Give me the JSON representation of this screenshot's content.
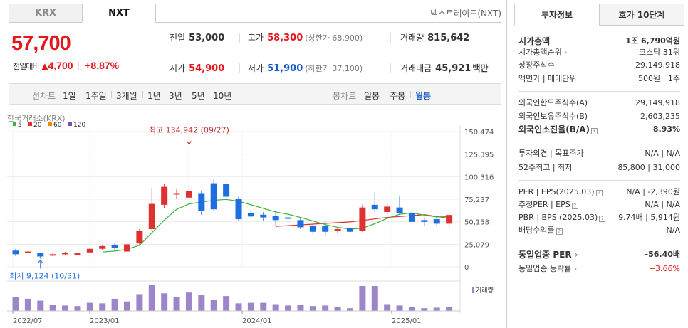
{
  "tabs": [
    "KRX",
    "NXT"
  ],
  "nxt_link": "넥스트레이드(NXT)",
  "price": "57,700",
  "change": {
    "label": "전일대비",
    "arrow": "▲",
    "amount": "4,700",
    "rate": "+8.87%"
  },
  "stats": {
    "prev_label": "전일",
    "prev": "53,000",
    "high_label": "고가",
    "high": "58,300",
    "upper": "(상한가 68,900)",
    "volume_label": "거래량",
    "volume": "815,642",
    "open_label": "시가",
    "open": "54,900",
    "low_label": "저가",
    "low": "51,900",
    "lower": "(하한가 37,100)",
    "amount_label": "거래대금",
    "amount": "45,921",
    "amount_unit": "백만"
  },
  "toolbar": {
    "line_label": "선차트",
    "line_items": [
      "1일",
      "1주일",
      "3개월",
      "1년",
      "3년",
      "5년",
      "10년"
    ],
    "candle_label": "봉차트",
    "candle_items": [
      "일봉",
      "주봉",
      "월봉"
    ]
  },
  "chart_data": {
    "type": "candlestick",
    "source": "한국거래소(KRX)",
    "legend": [
      {
        "name": "5",
        "color": "#3bb33b"
      },
      {
        "name": "20",
        "color": "#e03131"
      },
      {
        "name": "60",
        "color": "#f08c00"
      },
      {
        "name": "120",
        "color": "#7950b2"
      }
    ],
    "y_ticks": [
      "150,474",
      "125,395",
      "100,316",
      "75,237",
      "50,158",
      "25,079",
      "0"
    ],
    "x_ticks": [
      "2022/07",
      "2023/01",
      "2024/01",
      "2025/01"
    ],
    "high_label": "최고 134,942 (09/27)",
    "low_label": "최저 9,124 (10/31)",
    "volume_label": "거래량",
    "candles": [
      {
        "o": 18000,
        "c": 14000,
        "h": 20000,
        "l": 12000
      },
      {
        "o": 17000,
        "c": 17000,
        "h": 19000,
        "l": 15000
      },
      {
        "o": 15000,
        "c": 11500,
        "h": 16000,
        "l": 9124
      },
      {
        "o": 13000,
        "c": 14000,
        "h": 15000,
        "l": 12000
      },
      {
        "o": 14500,
        "c": 15500,
        "h": 16500,
        "l": 13500
      },
      {
        "o": 15000,
        "c": 15000,
        "h": 16000,
        "l": 14000
      },
      {
        "o": 16000,
        "c": 20000,
        "h": 21000,
        "l": 15000
      },
      {
        "o": 20000,
        "c": 23000,
        "h": 24000,
        "l": 19000
      },
      {
        "o": 24000,
        "c": 21000,
        "h": 26000,
        "l": 19000
      },
      {
        "o": 17000,
        "c": 25000,
        "h": 27000,
        "l": 15000
      },
      {
        "o": 26000,
        "c": 40000,
        "h": 42000,
        "l": 24000
      },
      {
        "o": 42000,
        "c": 70000,
        "h": 88000,
        "l": 40000
      },
      {
        "o": 69000,
        "c": 89000,
        "h": 92000,
        "l": 65000
      },
      {
        "o": 82000,
        "c": 82000,
        "h": 87000,
        "l": 76000
      },
      {
        "o": 77000,
        "c": 84000,
        "h": 134942,
        "l": 76000
      },
      {
        "o": 82000,
        "c": 62000,
        "h": 85000,
        "l": 58000
      },
      {
        "o": 93000,
        "c": 64000,
        "h": 98000,
        "l": 62000
      },
      {
        "o": 92000,
        "c": 78000,
        "h": 95000,
        "l": 74000
      },
      {
        "o": 76000,
        "c": 53000,
        "h": 78000,
        "l": 51000
      },
      {
        "o": 60000,
        "c": 56000,
        "h": 64000,
        "l": 54000
      },
      {
        "o": 58000,
        "c": 55000,
        "h": 61000,
        "l": 51000
      },
      {
        "o": 57000,
        "c": 52000,
        "h": 62000,
        "l": 45000
      },
      {
        "o": 55000,
        "c": 54000,
        "h": 58000,
        "l": 49000
      },
      {
        "o": 52000,
        "c": 44000,
        "h": 55000,
        "l": 42000
      },
      {
        "o": 46000,
        "c": 39000,
        "h": 48000,
        "l": 36000
      },
      {
        "o": 46000,
        "c": 39000,
        "h": 51000,
        "l": 34000
      },
      {
        "o": 40000,
        "c": 42000,
        "h": 44000,
        "l": 37000
      },
      {
        "o": 43000,
        "c": 39000,
        "h": 45000,
        "l": 36000
      },
      {
        "o": 40000,
        "c": 66000,
        "h": 69000,
        "l": 39000
      },
      {
        "o": 69000,
        "c": 64000,
        "h": 83000,
        "l": 61000
      },
      {
        "o": 61000,
        "c": 67000,
        "h": 70000,
        "l": 58000
      },
      {
        "o": 66000,
        "c": 60000,
        "h": 79000,
        "l": 58000
      },
      {
        "o": 60000,
        "c": 50000,
        "h": 62000,
        "l": 48000
      },
      {
        "o": 52000,
        "c": 50000,
        "h": 55000,
        "l": 45000
      },
      {
        "o": 53000,
        "c": 48000,
        "h": 56000,
        "l": 46000
      },
      {
        "o": 48000,
        "c": 57700,
        "h": 60000,
        "l": 42000
      }
    ],
    "ma5": [
      [
        7,
        16500
      ],
      [
        8,
        17500
      ],
      [
        9,
        19500
      ],
      [
        10,
        24000
      ],
      [
        11,
        38000
      ],
      [
        12,
        52000
      ],
      [
        13,
        64000
      ],
      [
        14,
        70000
      ],
      [
        15,
        72000
      ],
      [
        16,
        74000
      ],
      [
        17,
        75000
      ],
      [
        18,
        73000
      ],
      [
        19,
        69000
      ],
      [
        20,
        65000
      ],
      [
        21,
        61000
      ],
      [
        22,
        58500
      ],
      [
        23,
        55000
      ],
      [
        24,
        51000
      ],
      [
        25,
        47000
      ],
      [
        26,
        44000
      ],
      [
        27,
        42000
      ],
      [
        28,
        43000
      ],
      [
        29,
        48000
      ],
      [
        30,
        54000
      ],
      [
        31,
        58500
      ],
      [
        32,
        60000
      ],
      [
        33,
        57500
      ],
      [
        34,
        55500
      ],
      [
        35,
        56000
      ]
    ],
    "ma20": [
      [
        21,
        45000
      ],
      [
        24,
        47500
      ],
      [
        27,
        50000
      ],
      [
        30,
        55000
      ],
      [
        33,
        58000
      ],
      [
        35,
        54000
      ]
    ],
    "volumes": [
      0.52,
      0.45,
      0.38,
      0.22,
      0.2,
      0.18,
      0.3,
      0.28,
      0.45,
      0.35,
      0.62,
      0.95,
      0.65,
      0.5,
      0.68,
      0.58,
      0.42,
      0.55,
      0.28,
      0.3,
      0.3,
      0.25,
      0.2,
      0.22,
      0.18,
      0.2,
      0.15,
      0.1,
      0.92,
      0.92,
      0.25,
      0.2,
      0.15,
      0.1,
      0.12,
      0.15
    ]
  },
  "panel": {
    "tabs": [
      "투자정보",
      "호가 10단계"
    ],
    "rows": [
      {
        "k": "시가총액",
        "v": "1조 6,790억원",
        "bold": true
      },
      {
        "k": "시가총액순위",
        "v": "코스닥 31위",
        "arrow": true
      },
      {
        "k": "상장주식수",
        "v": "29,149,918"
      },
      {
        "k": "액면가 | 매매단위",
        "v": "500원 | 1주"
      },
      {
        "k": "외국인한도주식수(A)",
        "v": "29,149,918"
      },
      {
        "k": "외국인보유주식수(B)",
        "v": "2,603,235"
      },
      {
        "k": "외국인소진율(B/A)",
        "v": "8.93%",
        "bold": true,
        "q": true
      },
      {
        "k": "투자의견 | 목표주가",
        "v": "N/A | N/A"
      },
      {
        "k": "52주최고 | 최저",
        "v": "85,800 | 31,000"
      },
      {
        "k": "PER | EPS(2025.03)",
        "v": "N/A | -2,390원",
        "q": true
      },
      {
        "k": "추정PER | EPS",
        "v": "N/A | N/A",
        "q": true
      },
      {
        "k": "PBR | BPS (2025.03)",
        "v": "9.74배 | 5,914원",
        "q": true
      },
      {
        "k": "배당수익률",
        "v": "N/A",
        "q": true
      },
      {
        "k": "동일업종 PER",
        "v": "-56.40배",
        "bold": true,
        "arrow": true
      },
      {
        "k": "동일업종 등락률",
        "v": "+3.66%",
        "red": true,
        "arrow": true
      }
    ]
  }
}
